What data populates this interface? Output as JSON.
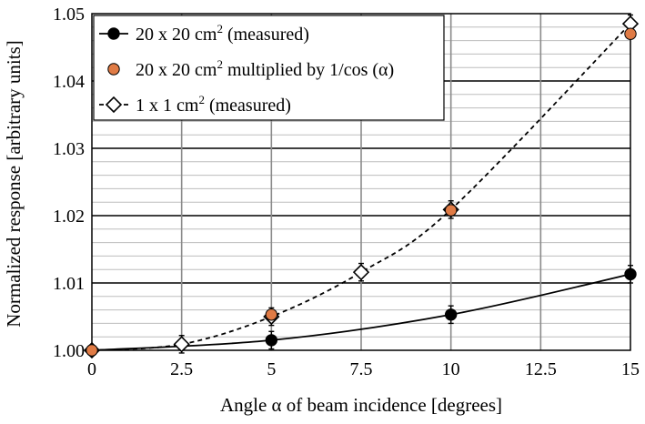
{
  "chart_data": {
    "type": "line",
    "title": "",
    "xlabel": "Angle α of beam incidence [degrees]",
    "ylabel": "Normalized response [arbitrary units]",
    "xlim": [
      0,
      15
    ],
    "ylim": [
      1.0,
      1.05
    ],
    "xticks": [
      0,
      2.5,
      5,
      7.5,
      10,
      12.5,
      15
    ],
    "xtick_labels": [
      "0",
      "2.5",
      "5",
      "7.5",
      "10",
      "12.5",
      "15"
    ],
    "yticks": [
      1.0,
      1.01,
      1.02,
      1.03,
      1.04,
      1.05
    ],
    "ytick_labels": [
      "1.00",
      "1.01",
      "1.02",
      "1.03",
      "1.04",
      "1.05"
    ],
    "grid": true,
    "legend_position": "top-left",
    "series": [
      {
        "name": "20 x 20 cm² (measured)",
        "legend_main": "20 x 20 cm",
        "legend_sup": "2",
        "legend_tail": " (measured)",
        "marker": "circle",
        "color": "#000000",
        "line": "solid",
        "x": [
          0,
          5,
          10,
          15
        ],
        "y": [
          1.0,
          1.0015,
          1.0053,
          1.0113
        ],
        "yerr": [
          0,
          0.0013,
          0.0013,
          0.0013
        ]
      },
      {
        "name": "20 x 20 cm² multiplied by 1/cos (α)",
        "legend_main": "20 x 20 cm",
        "legend_sup": "2",
        "legend_tail": " multiplied by 1/cos (α)",
        "marker": "circle",
        "color": "#e07b45",
        "line": "none",
        "x": [
          0,
          5,
          10,
          15
        ],
        "y": [
          1.0,
          1.0053,
          1.0208,
          1.047
        ],
        "yerr": [
          0,
          0,
          0,
          0
        ]
      },
      {
        "name": "1 x 1 cm² (measured)",
        "legend_main": "1 x 1 cm",
        "legend_sup": "2",
        "legend_tail": " (measured)",
        "marker": "diamond",
        "color": "#000000",
        "line": "dashed",
        "x": [
          0,
          2.5,
          5,
          7.5,
          10,
          15
        ],
        "y": [
          1.0,
          1.0009,
          1.005,
          1.0116,
          1.0209,
          1.0485
        ],
        "yerr": [
          0,
          0.0013,
          0.0013,
          0.0013,
          0.0013,
          0.0013
        ]
      }
    ]
  }
}
